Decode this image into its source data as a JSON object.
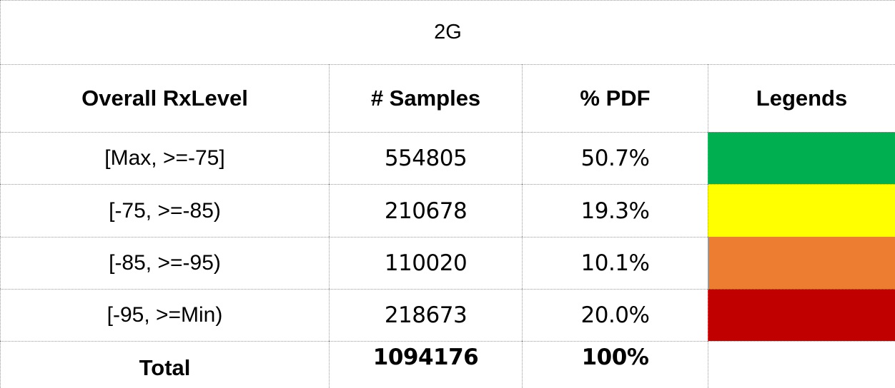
{
  "table": {
    "title": "2G",
    "headers": [
      "Overall RxLevel",
      "# Samples",
      "% PDF",
      "Legends"
    ],
    "rows": [
      [
        "[Max, >=-75]",
        "554805",
        "50.7%"
      ],
      [
        "[-75, >=-85)",
        "210678",
        "19.3%"
      ],
      [
        "[-85, >=-95)",
        "110020",
        "10.1%"
      ],
      [
        "[-95, >=Min)",
        "218673",
        "20.0%"
      ]
    ],
    "legend_colors": [
      "#00b050",
      "#ffff00",
      "#ed7d31",
      "#c00000"
    ],
    "total": [
      "Total",
      "1094176",
      "100%"
    ]
  }
}
